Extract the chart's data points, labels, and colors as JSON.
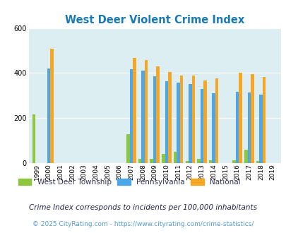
{
  "title": "West Deer Violent Crime Index",
  "years": [
    1999,
    2000,
    2001,
    2002,
    2003,
    2004,
    2005,
    2006,
    2007,
    2008,
    2009,
    2010,
    2011,
    2012,
    2013,
    2014,
    2015,
    2016,
    2017,
    2018,
    2019
  ],
  "west_deer": [
    215,
    0,
    0,
    0,
    0,
    0,
    0,
    0,
    130,
    20,
    20,
    40,
    50,
    10,
    18,
    12,
    0,
    12,
    60,
    10,
    0
  ],
  "pennsylvania": [
    0,
    420,
    0,
    0,
    0,
    0,
    0,
    0,
    418,
    410,
    385,
    365,
    358,
    350,
    330,
    310,
    0,
    318,
    312,
    305,
    0
  ],
  "national": [
    0,
    508,
    0,
    0,
    0,
    0,
    0,
    0,
    468,
    458,
    430,
    405,
    388,
    388,
    368,
    375,
    0,
    400,
    395,
    383,
    0
  ],
  "bar_width": 0.27,
  "ylim": [
    0,
    600
  ],
  "yticks": [
    0,
    200,
    400,
    600
  ],
  "color_west_deer": "#8dc63f",
  "color_pennsylvania": "#4da6e8",
  "color_national": "#f5a623",
  "bg_color": "#ddeef3",
  "title_color": "#1a7ab5",
  "legend_label_color": "#333355",
  "footnote1": "Crime Index corresponds to incidents per 100,000 inhabitants",
  "footnote2": "© 2025 CityRating.com - https://www.cityrating.com/crime-statistics/",
  "footnote1_color": "#222244",
  "footnote2_color": "#5599cc"
}
